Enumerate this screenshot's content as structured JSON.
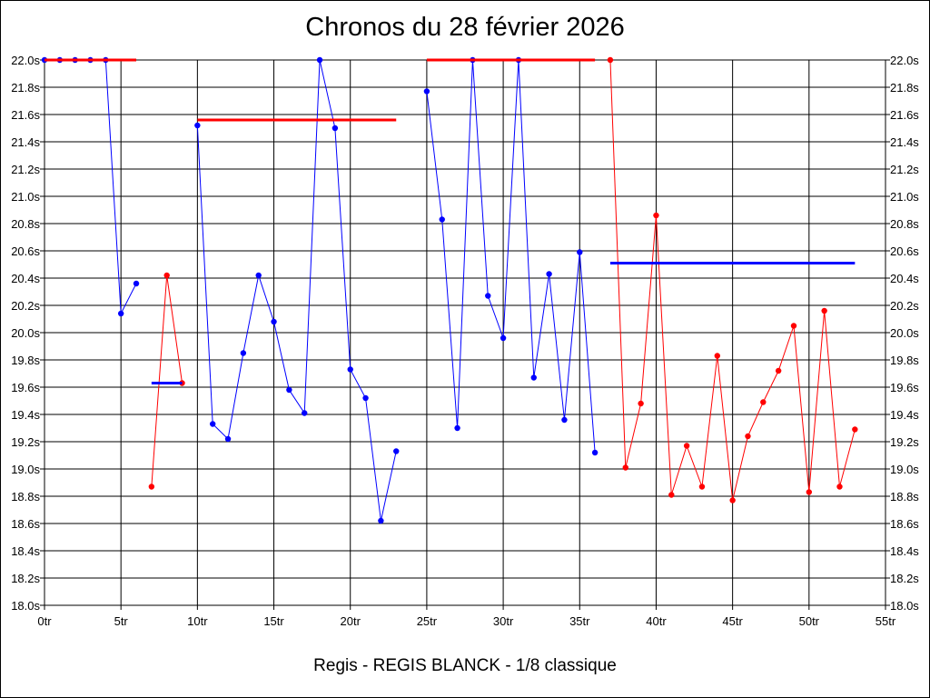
{
  "chart_data": {
    "type": "line",
    "title": "Chronos du 28 février 2026",
    "caption": "Regis - REGIS BLANCK - 1/8 classique",
    "xlim": [
      0,
      55
    ],
    "ylim": [
      18.0,
      22.0
    ],
    "x_ticks": [
      0,
      5,
      10,
      15,
      20,
      25,
      30,
      35,
      40,
      45,
      50,
      55
    ],
    "x_tick_labels": [
      "0tr",
      "5tr",
      "10tr",
      "15tr",
      "20tr",
      "25tr",
      "30tr",
      "35tr",
      "40tr",
      "45tr",
      "50tr",
      "55tr"
    ],
    "y_ticks": [
      18.0,
      18.2,
      18.4,
      18.6,
      18.8,
      19.0,
      19.2,
      19.4,
      19.6,
      19.8,
      20.0,
      20.2,
      20.4,
      20.6,
      20.8,
      21.0,
      21.2,
      21.4,
      21.6,
      21.8,
      22.0
    ],
    "y_tick_labels": [
      "18.0s",
      "18.2s",
      "18.4s",
      "18.6s",
      "18.8s",
      "19.0s",
      "19.2s",
      "19.4s",
      "19.6s",
      "19.8s",
      "20.0s",
      "20.2s",
      "20.4s",
      "20.6s",
      "20.8s",
      "21.0s",
      "21.2s",
      "21.4s",
      "21.6s",
      "21.8s",
      "22.0s"
    ],
    "grid": true,
    "series": [
      {
        "color": "#0000ff",
        "x": [
          0,
          1,
          2,
          3,
          4,
          5,
          6
        ],
        "y": [
          22.0,
          22.0,
          22.0,
          22.0,
          22.0,
          20.14,
          20.36
        ]
      },
      {
        "color": "#ff0000",
        "x": [
          7,
          8,
          9
        ],
        "y": [
          18.87,
          20.42,
          19.63
        ]
      },
      {
        "color": "#0000ff",
        "x": [
          10,
          11,
          12,
          13,
          14,
          15,
          16,
          17,
          18,
          19,
          20,
          21,
          22,
          23
        ],
        "y": [
          21.52,
          19.33,
          19.22,
          19.85,
          20.42,
          20.08,
          19.58,
          19.41,
          22.0,
          21.5,
          19.73,
          19.52,
          18.62,
          19.13
        ]
      },
      {
        "color": "#0000ff",
        "x": [
          25,
          26,
          27,
          28,
          29,
          30,
          31,
          32,
          33,
          34,
          35,
          36
        ],
        "y": [
          21.77,
          20.83,
          19.3,
          22.0,
          20.27,
          19.96,
          22.0,
          19.67,
          20.43,
          19.36,
          20.59,
          19.12
        ]
      },
      {
        "color": "#ff0000",
        "x": [
          37,
          38,
          39,
          40,
          41,
          42,
          43,
          44,
          45,
          46,
          47,
          48,
          49,
          50,
          51,
          52,
          53
        ],
        "y": [
          22.0,
          19.01,
          19.48,
          20.86,
          18.81,
          19.17,
          18.87,
          19.83,
          18.77,
          19.24,
          19.49,
          19.72,
          20.05,
          18.83,
          20.16,
          18.87,
          19.29
        ]
      }
    ],
    "reference_lines": [
      {
        "color": "#ff0000",
        "x": [
          0,
          6
        ],
        "y": 22.0
      },
      {
        "color": "#0000ff",
        "x": [
          7,
          9
        ],
        "y": 19.63
      },
      {
        "color": "#ff0000",
        "x": [
          10,
          23
        ],
        "y": 21.56
      },
      {
        "color": "#ff0000",
        "x": [
          25,
          36
        ],
        "y": 22.0
      },
      {
        "color": "#0000ff",
        "x": [
          37,
          53
        ],
        "y": 20.51
      }
    ]
  }
}
